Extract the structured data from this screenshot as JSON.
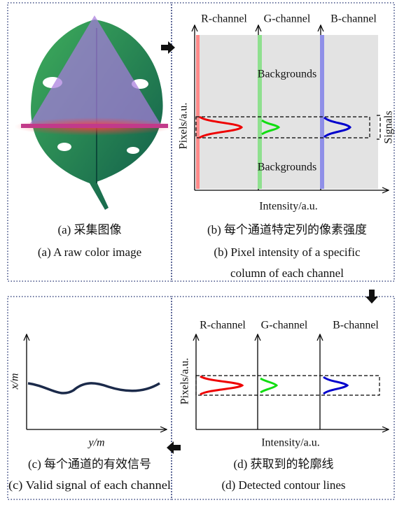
{
  "panels": {
    "a": {
      "caption_cn": "(a) 采集图像",
      "caption_en": "(a) A raw color image"
    },
    "b": {
      "channels": [
        "R-channel",
        "G-channel",
        "B-channel"
      ],
      "background_labels": [
        "Backgrounds",
        "Backgrounds"
      ],
      "signals_label": "Signals",
      "y_axis": "Pixels/a.u.",
      "x_axis": "Intensity/a.u.",
      "caption_cn": "(b) 每个通道特定列的像素强度",
      "caption_en": [
        "(b) Pixel intensity of a specific",
        "column of each channel"
      ]
    },
    "c": {
      "y_axis": "x/m",
      "x_axis": "y/m",
      "caption_cn": "(c) 每个通道的有效信号",
      "caption_en": "(c) Valid signal of each channel"
    },
    "d": {
      "channels": [
        "R-channel",
        "G-channel",
        "B-channel"
      ],
      "y_axis": "Pixels/a.u.",
      "x_axis": "Intensity/a.u.",
      "caption_cn": "(d) 获取到的轮廓线",
      "caption_en": "(d) Detected contour lines"
    }
  }
}
